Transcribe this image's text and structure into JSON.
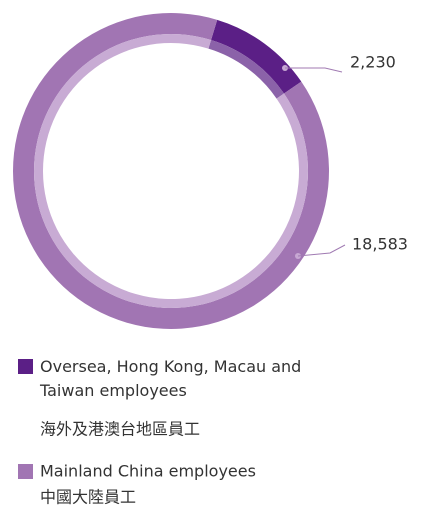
{
  "chart_data": {
    "type": "donut",
    "categories": [
      "Oversea, Hong Kong, Macau and Taiwan employees",
      "Mainland China employees"
    ],
    "categories_zh": [
      "海外及港澳台地區員工",
      "中國大陸員工"
    ],
    "values": [
      2230,
      18583
    ],
    "value_labels": [
      "2,230",
      "18,583"
    ],
    "colors": [
      "#5b1f86",
      "#a175b3"
    ],
    "inner_colors": [
      "#8b62a9",
      "#c8abd4"
    ]
  }
}
